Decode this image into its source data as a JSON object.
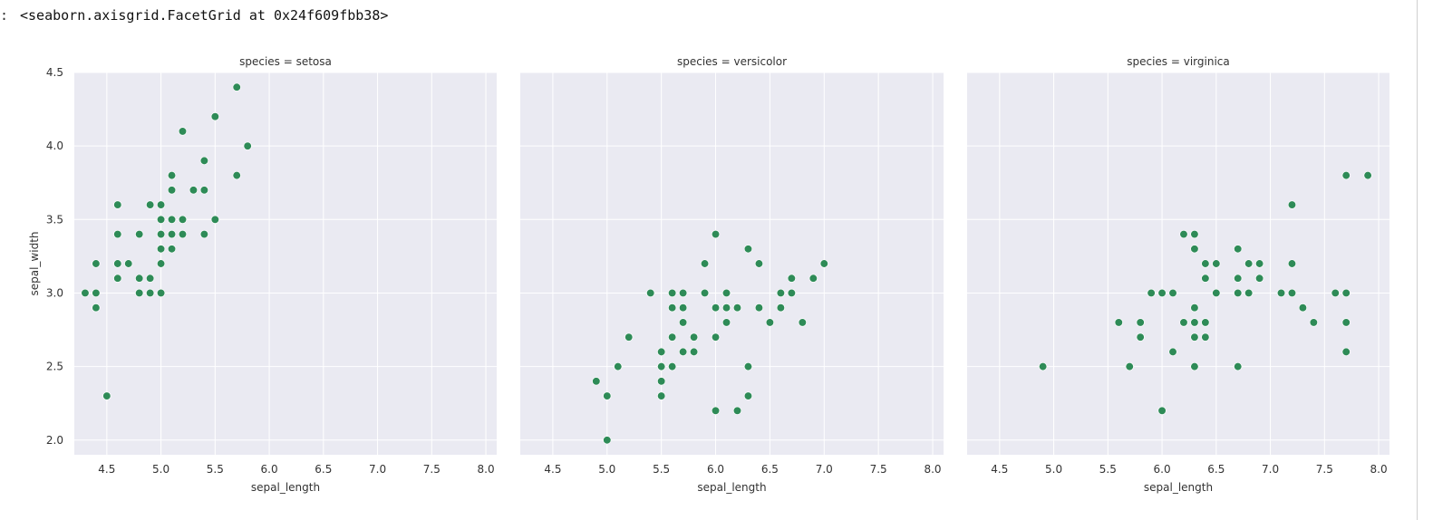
{
  "output": {
    "prompt": ":",
    "repr": "<seaborn.axisgrid.FacetGrid at 0x24f609fbb38>"
  },
  "style": {
    "panel_bg": "#eaeaf2",
    "grid": "#ffffff",
    "point": "#2e8b57",
    "text": "#333333"
  },
  "chart_data": {
    "type": "scatter",
    "facet_by": "species",
    "xlabel": "sepal_length",
    "ylabel": "sepal_width",
    "xlim": [
      4.2,
      8.1
    ],
    "ylim": [
      1.9,
      4.5
    ],
    "xticks": [
      "4.5",
      "5.0",
      "5.5",
      "6.0",
      "6.5",
      "7.0",
      "7.5",
      "8.0"
    ],
    "yticks": [
      "2.0",
      "2.5",
      "3.0",
      "3.5",
      "4.0",
      "4.5"
    ],
    "grid": true,
    "panels": [
      {
        "title": "species = setosa",
        "points": [
          [
            4.3,
            3.0
          ],
          [
            4.4,
            2.9
          ],
          [
            4.4,
            3.0
          ],
          [
            4.4,
            3.2
          ],
          [
            4.5,
            2.3
          ],
          [
            4.6,
            3.1
          ],
          [
            4.6,
            3.2
          ],
          [
            4.6,
            3.4
          ],
          [
            4.6,
            3.6
          ],
          [
            4.7,
            3.2
          ],
          [
            4.8,
            3.0
          ],
          [
            4.8,
            3.1
          ],
          [
            4.8,
            3.4
          ],
          [
            4.9,
            3.0
          ],
          [
            4.9,
            3.1
          ],
          [
            4.9,
            3.6
          ],
          [
            5.0,
            3.0
          ],
          [
            5.0,
            3.2
          ],
          [
            5.0,
            3.3
          ],
          [
            5.0,
            3.4
          ],
          [
            5.0,
            3.5
          ],
          [
            5.0,
            3.6
          ],
          [
            5.1,
            3.3
          ],
          [
            5.1,
            3.4
          ],
          [
            5.1,
            3.5
          ],
          [
            5.1,
            3.7
          ],
          [
            5.1,
            3.8
          ],
          [
            5.2,
            3.4
          ],
          [
            5.2,
            3.5
          ],
          [
            5.2,
            4.1
          ],
          [
            5.3,
            3.7
          ],
          [
            5.4,
            3.4
          ],
          [
            5.4,
            3.7
          ],
          [
            5.4,
            3.9
          ],
          [
            5.5,
            3.5
          ],
          [
            5.5,
            4.2
          ],
          [
            5.7,
            3.8
          ],
          [
            5.7,
            4.4
          ],
          [
            5.8,
            4.0
          ]
        ]
      },
      {
        "title": "species = versicolor",
        "points": [
          [
            4.9,
            2.4
          ],
          [
            5.0,
            2.0
          ],
          [
            5.0,
            2.3
          ],
          [
            5.1,
            2.5
          ],
          [
            5.2,
            2.7
          ],
          [
            5.4,
            3.0
          ],
          [
            5.5,
            2.3
          ],
          [
            5.5,
            2.4
          ],
          [
            5.5,
            2.5
          ],
          [
            5.5,
            2.6
          ],
          [
            5.6,
            2.5
          ],
          [
            5.6,
            2.7
          ],
          [
            5.6,
            2.9
          ],
          [
            5.6,
            3.0
          ],
          [
            5.7,
            2.6
          ],
          [
            5.7,
            2.8
          ],
          [
            5.7,
            2.9
          ],
          [
            5.7,
            3.0
          ],
          [
            5.8,
            2.6
          ],
          [
            5.8,
            2.7
          ],
          [
            5.9,
            3.0
          ],
          [
            5.9,
            3.2
          ],
          [
            6.0,
            2.2
          ],
          [
            6.0,
            2.7
          ],
          [
            6.0,
            2.9
          ],
          [
            6.0,
            3.4
          ],
          [
            6.1,
            2.8
          ],
          [
            6.1,
            2.9
          ],
          [
            6.1,
            3.0
          ],
          [
            6.2,
            2.2
          ],
          [
            6.2,
            2.9
          ],
          [
            6.3,
            2.3
          ],
          [
            6.3,
            2.5
          ],
          [
            6.3,
            3.3
          ],
          [
            6.4,
            2.9
          ],
          [
            6.4,
            3.2
          ],
          [
            6.5,
            2.8
          ],
          [
            6.6,
            2.9
          ],
          [
            6.6,
            3.0
          ],
          [
            6.7,
            3.0
          ],
          [
            6.7,
            3.1
          ],
          [
            6.8,
            2.8
          ],
          [
            6.9,
            3.1
          ],
          [
            7.0,
            3.2
          ]
        ]
      },
      {
        "title": "species = virginica",
        "points": [
          [
            4.9,
            2.5
          ],
          [
            5.6,
            2.8
          ],
          [
            5.7,
            2.5
          ],
          [
            5.8,
            2.7
          ],
          [
            5.8,
            2.8
          ],
          [
            5.9,
            3.0
          ],
          [
            6.0,
            2.2
          ],
          [
            6.0,
            3.0
          ],
          [
            6.1,
            2.6
          ],
          [
            6.1,
            3.0
          ],
          [
            6.2,
            2.8
          ],
          [
            6.2,
            3.4
          ],
          [
            6.3,
            2.5
          ],
          [
            6.3,
            2.7
          ],
          [
            6.3,
            2.8
          ],
          [
            6.3,
            2.9
          ],
          [
            6.3,
            3.3
          ],
          [
            6.3,
            3.4
          ],
          [
            6.4,
            2.7
          ],
          [
            6.4,
            2.8
          ],
          [
            6.4,
            3.1
          ],
          [
            6.4,
            3.2
          ],
          [
            6.5,
            3.0
          ],
          [
            6.5,
            3.2
          ],
          [
            6.7,
            2.5
          ],
          [
            6.7,
            3.0
          ],
          [
            6.7,
            3.1
          ],
          [
            6.7,
            3.3
          ],
          [
            6.8,
            3.0
          ],
          [
            6.8,
            3.2
          ],
          [
            6.9,
            3.1
          ],
          [
            6.9,
            3.2
          ],
          [
            7.1,
            3.0
          ],
          [
            7.2,
            3.0
          ],
          [
            7.2,
            3.2
          ],
          [
            7.2,
            3.6
          ],
          [
            7.3,
            2.9
          ],
          [
            7.4,
            2.8
          ],
          [
            7.6,
            3.0
          ],
          [
            7.7,
            2.6
          ],
          [
            7.7,
            2.8
          ],
          [
            7.7,
            3.0
          ],
          [
            7.7,
            3.8
          ],
          [
            7.9,
            3.8
          ]
        ]
      }
    ]
  }
}
